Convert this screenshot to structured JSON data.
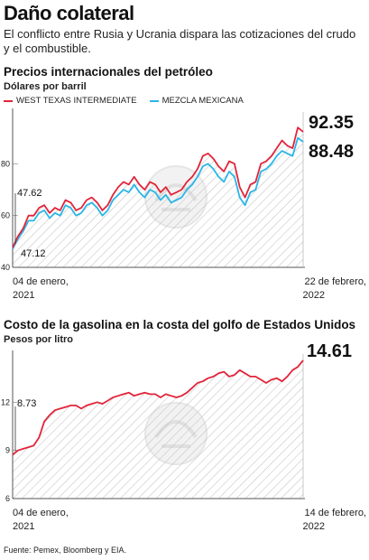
{
  "header": {
    "title": "Daño colateral",
    "deck": "El conflicto entre Rusia y Ucrania dispara las cotizaciones del crudo y el combustible."
  },
  "chart1_header": {
    "title": "Precios internacionales del petróleo",
    "subtitle": "Dólares por barril"
  },
  "chart2_header": {
    "title": "Costo de la gasolina en la costa del golfo de Estados Unidos",
    "subtitle": "Pesos por litro"
  },
  "source": "Fuente: Pemex, Bloomberg y EIA.",
  "colors": {
    "wti": "#e2243a",
    "mezcla": "#29b6e8",
    "gas": "#e2243a",
    "hatch": "#bdbdbd"
  },
  "chart_data": [
    {
      "type": "line",
      "title": "Precios internacionales del petróleo",
      "ylabel": "Dólares por barril",
      "ylim": [
        40,
        100
      ],
      "yticks": [
        40,
        60,
        80
      ],
      "x_start_label": "04 de enero, 2021",
      "x_end_label": "22 de febrero, 2022",
      "annotations": {
        "start_wti": "47.62",
        "start_mezcla": "47.12",
        "end_wti": "92.35",
        "end_mezcla": "88.48"
      },
      "series": [
        {
          "name": "WEST TEXAS INTERMEDIATE",
          "values": [
            47.62,
            52,
            55,
            60,
            60,
            63,
            64,
            61,
            63,
            62,
            66,
            65,
            62,
            63,
            66,
            67,
            65,
            62,
            64,
            68,
            71,
            73,
            72,
            75,
            72,
            70,
            73,
            72,
            69,
            71,
            68,
            69,
            70,
            73,
            75,
            78,
            83,
            84,
            82,
            79,
            77,
            81,
            80,
            71,
            67,
            72,
            73,
            80,
            81,
            83,
            86,
            89,
            87,
            86,
            94,
            92.35
          ]
        },
        {
          "name": "MEZCLA MEXICANA",
          "values": [
            47.12,
            51,
            54,
            58,
            58,
            61,
            62,
            59,
            61,
            60,
            64,
            63,
            60,
            61,
            64,
            65,
            63,
            60,
            62,
            66,
            68,
            70,
            69,
            72,
            69,
            67,
            70,
            69,
            66,
            68,
            65,
            66,
            67,
            70,
            72,
            75,
            79,
            80,
            78,
            75,
            73,
            77,
            75,
            67,
            64,
            69,
            70,
            77,
            78,
            80,
            83,
            85,
            84,
            83,
            90,
            88.48
          ]
        }
      ]
    },
    {
      "type": "line",
      "title": "Costo de la gasolina en la costa del golfo de Estados Unidos",
      "ylabel": "Pesos por litro",
      "ylim": [
        6,
        15
      ],
      "yticks": [
        6,
        9,
        12
      ],
      "x_start_label": "04 de enero, 2021",
      "x_end_label": "14 de febrero, 2022",
      "annotations": {
        "start": "8.73",
        "end": "14.61"
      },
      "series": [
        {
          "name": "",
          "values": [
            8.73,
            9.0,
            9.1,
            9.2,
            9.3,
            9.8,
            10.8,
            11.2,
            11.5,
            11.6,
            11.7,
            11.8,
            11.8,
            11.6,
            11.8,
            11.9,
            12.0,
            11.9,
            12.1,
            12.3,
            12.4,
            12.5,
            12.6,
            12.4,
            12.5,
            12.6,
            12.5,
            12.5,
            12.3,
            12.5,
            12.4,
            12.3,
            12.4,
            12.6,
            12.9,
            13.2,
            13.3,
            13.5,
            13.6,
            13.8,
            13.9,
            13.6,
            13.7,
            14.0,
            13.8,
            13.6,
            13.6,
            13.4,
            13.2,
            13.4,
            13.5,
            13.3,
            13.6,
            14.0,
            14.2,
            14.61
          ]
        }
      ]
    }
  ]
}
